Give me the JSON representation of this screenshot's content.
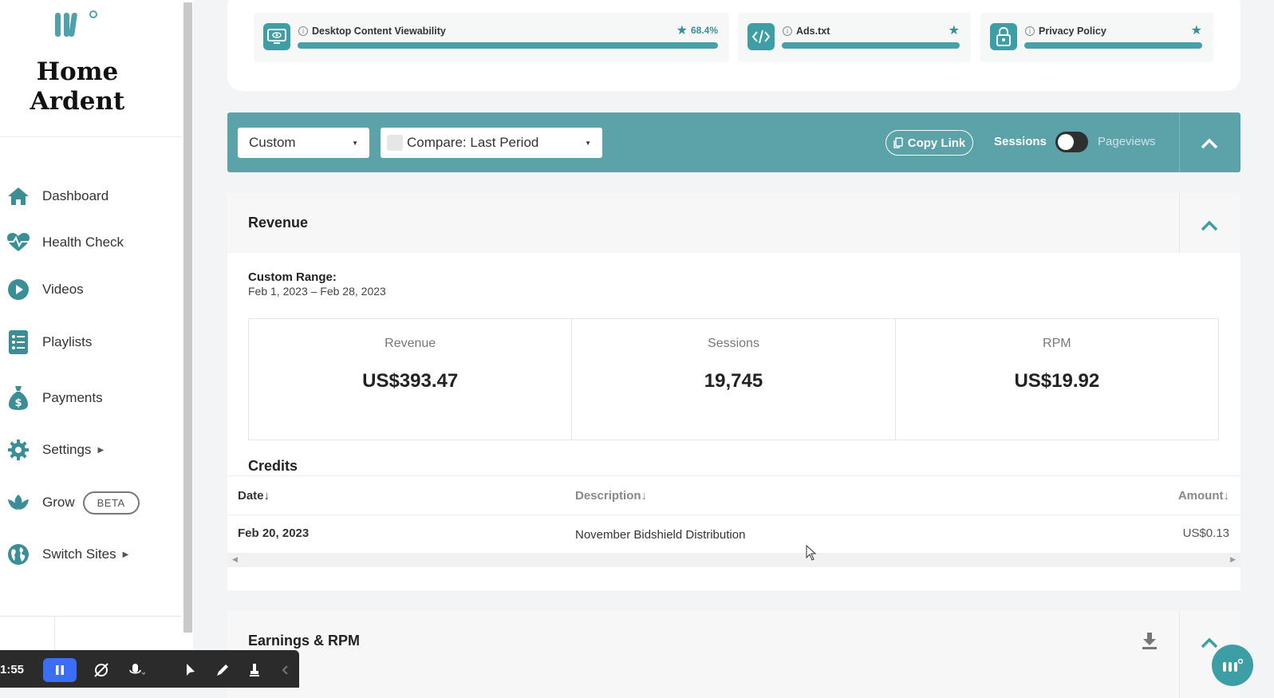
{
  "sidebar": {
    "brand": "Home Ardent",
    "items": [
      {
        "label": "Dashboard",
        "icon": "home-icon"
      },
      {
        "label": "Health Check",
        "icon": "heartbeat-icon"
      },
      {
        "label": "Videos",
        "icon": "play-icon"
      },
      {
        "label": "Playlists",
        "icon": "list-icon"
      },
      {
        "label": "Payments",
        "icon": "money-bag-icon"
      },
      {
        "label": "Settings",
        "icon": "gear-icon"
      },
      {
        "label": "Grow",
        "icon": "leaf-icon",
        "badge": "BETA"
      },
      {
        "label": "Switch Sites",
        "icon": "globe-icon"
      }
    ]
  },
  "health_checks": [
    {
      "title": "Desktop Content Viewability",
      "icon": "monitor-eye-icon",
      "value": "68.4%"
    },
    {
      "title": "Ads.txt",
      "icon": "code-icon"
    },
    {
      "title": "Privacy Policy",
      "icon": "lock-icon"
    }
  ],
  "filters": {
    "date_range": "Custom",
    "compare": "Compare: Last Period",
    "copy_link": "Copy Link",
    "toggle_left": "Sessions",
    "toggle_right": "Pageviews"
  },
  "revenue": {
    "title": "Revenue",
    "range_label": "Custom Range:",
    "range_value": "Feb 1, 2023 – Feb 28, 2023",
    "metrics": [
      {
        "label": "Revenue",
        "value": "US$393.47"
      },
      {
        "label": "Sessions",
        "value": "19,745"
      },
      {
        "label": "RPM",
        "value": "US$19.92"
      }
    ],
    "credits_title": "Credits",
    "columns": [
      "Date↓",
      "Description↓",
      "Amount↓"
    ],
    "rows": [
      {
        "date": "Feb 20, 2023",
        "description": "November Bidshield Distribution",
        "amount": "US$0.13"
      }
    ]
  },
  "earnings": {
    "title": "Earnings & RPM"
  },
  "recorder": {
    "time": "1:55"
  },
  "colors": {
    "accent": "#5ba3a9",
    "icon_teal": "#3d9ea6",
    "sidebar_icon": "#3b8e96"
  }
}
